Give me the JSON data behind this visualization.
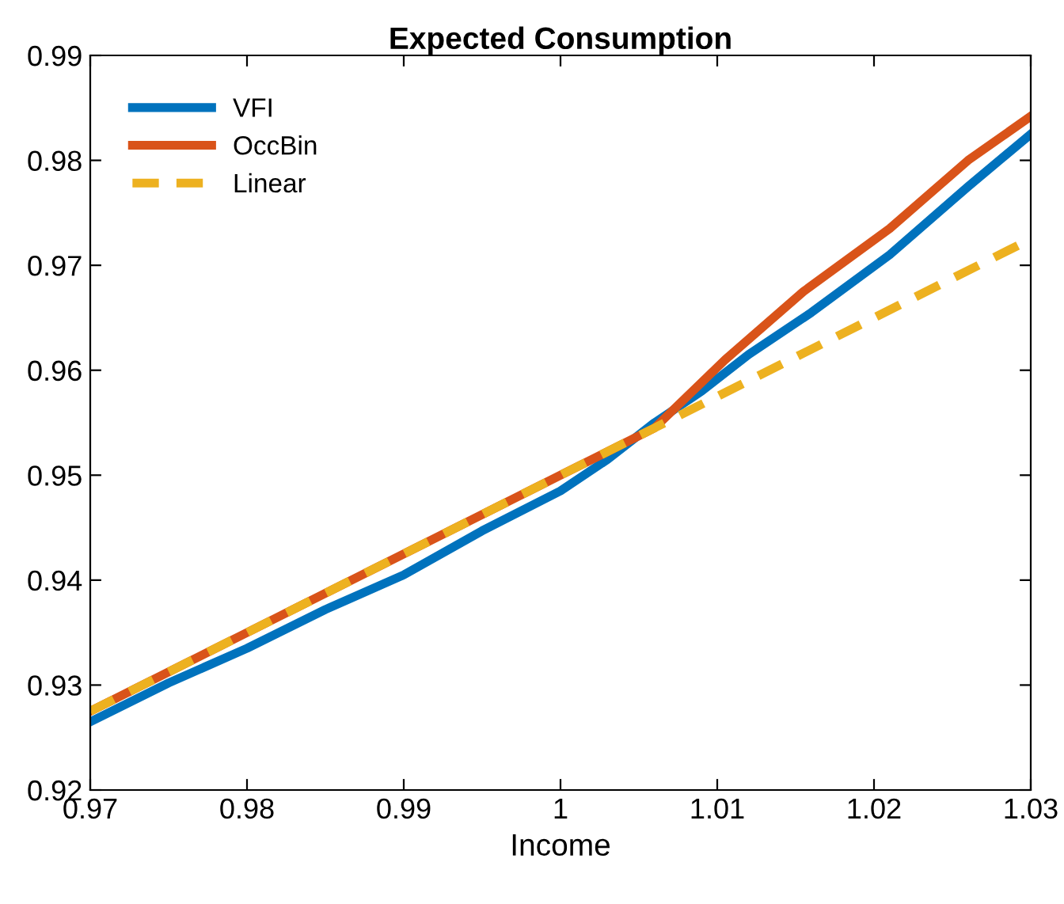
{
  "chart_data": {
    "type": "line",
    "title": "Expected Consumption",
    "xlabel": "Income",
    "xlim": [
      0.97,
      1.03
    ],
    "xticks": [
      0.97,
      0.98,
      0.99,
      1,
      1.01,
      1.02,
      1.03
    ],
    "ylim": [
      0.92,
      0.99
    ],
    "yticks": [
      0.92,
      0.93,
      0.94,
      0.95,
      0.96,
      0.97,
      0.98,
      0.99
    ],
    "grid": false,
    "legend": "top left",
    "marker": "none",
    "series": [
      {
        "name": "VFI",
        "color": "#0072bd",
        "line_style": "solid",
        "x": [
          0.97,
          0.975,
          0.98,
          0.985,
          0.99,
          0.995,
          1.0,
          1.003,
          1.006,
          1.009,
          1.012,
          1.016,
          1.021,
          1.026,
          1.03
        ],
        "values": [
          0.9265,
          0.9302,
          0.9335,
          0.9372,
          0.9405,
          0.9447,
          0.9485,
          0.9515,
          0.955,
          0.958,
          0.9615,
          0.9655,
          0.971,
          0.9775,
          0.9825
        ]
      },
      {
        "name": "OccBin",
        "color": "#d95319",
        "line_style": "solid",
        "x": [
          0.97,
          0.98,
          0.99,
          1.0,
          1.006,
          1.0105,
          1.0155,
          1.021,
          1.026,
          1.03
        ],
        "values": [
          0.9275,
          0.935,
          0.9425,
          0.95,
          0.9545,
          0.961,
          0.9675,
          0.9735,
          0.98,
          0.9842
        ]
      },
      {
        "name": "Linear",
        "color": "#edb120",
        "line_style": "dashed",
        "x": [
          0.97,
          1.006,
          1.03
        ],
        "values": [
          0.9275,
          0.9545,
          0.9725
        ]
      }
    ]
  }
}
